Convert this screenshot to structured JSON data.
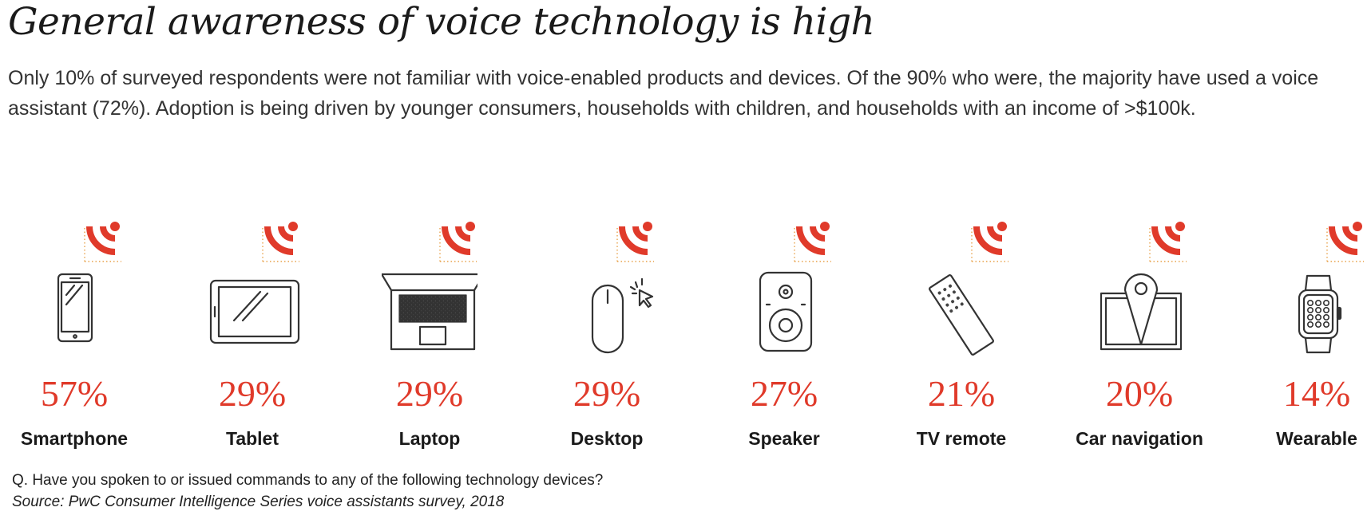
{
  "title": "General awareness of voice technology is high",
  "subtitle": "Only 10% of surveyed respondents were not familiar with voice-enabled products and devices. Of the 90% who were, the majority have used a voice assistant (72%). Adoption is being driven by younger consumers, households with children, and households with an income of >$100k.",
  "footer": {
    "question": "Q. Have you spoken to or issued commands to any of the following technology devices?",
    "source": "Source: PwC Consumer Intelligence Series voice assistants survey, 2018"
  },
  "colors": {
    "accent": "#e03a2a",
    "icon_stroke": "#333333",
    "dotted_guide": "#e8a24a"
  },
  "chart_data": {
    "type": "table",
    "categories": [
      "Smartphone",
      "Tablet",
      "Laptop",
      "Desktop",
      "Speaker",
      "TV remote",
      "Car navigation",
      "Wearable"
    ],
    "values": [
      57,
      29,
      29,
      29,
      27,
      21,
      20,
      14
    ],
    "value_labels": [
      "57%",
      "29%",
      "29%",
      "29%",
      "27%",
      "21%",
      "20%",
      "14%"
    ],
    "icons": [
      "smartphone-icon",
      "tablet-icon",
      "laptop-icon",
      "desktop-mouse-icon",
      "speaker-icon",
      "tv-remote-icon",
      "car-navigation-icon",
      "wearable-watch-icon"
    ]
  }
}
